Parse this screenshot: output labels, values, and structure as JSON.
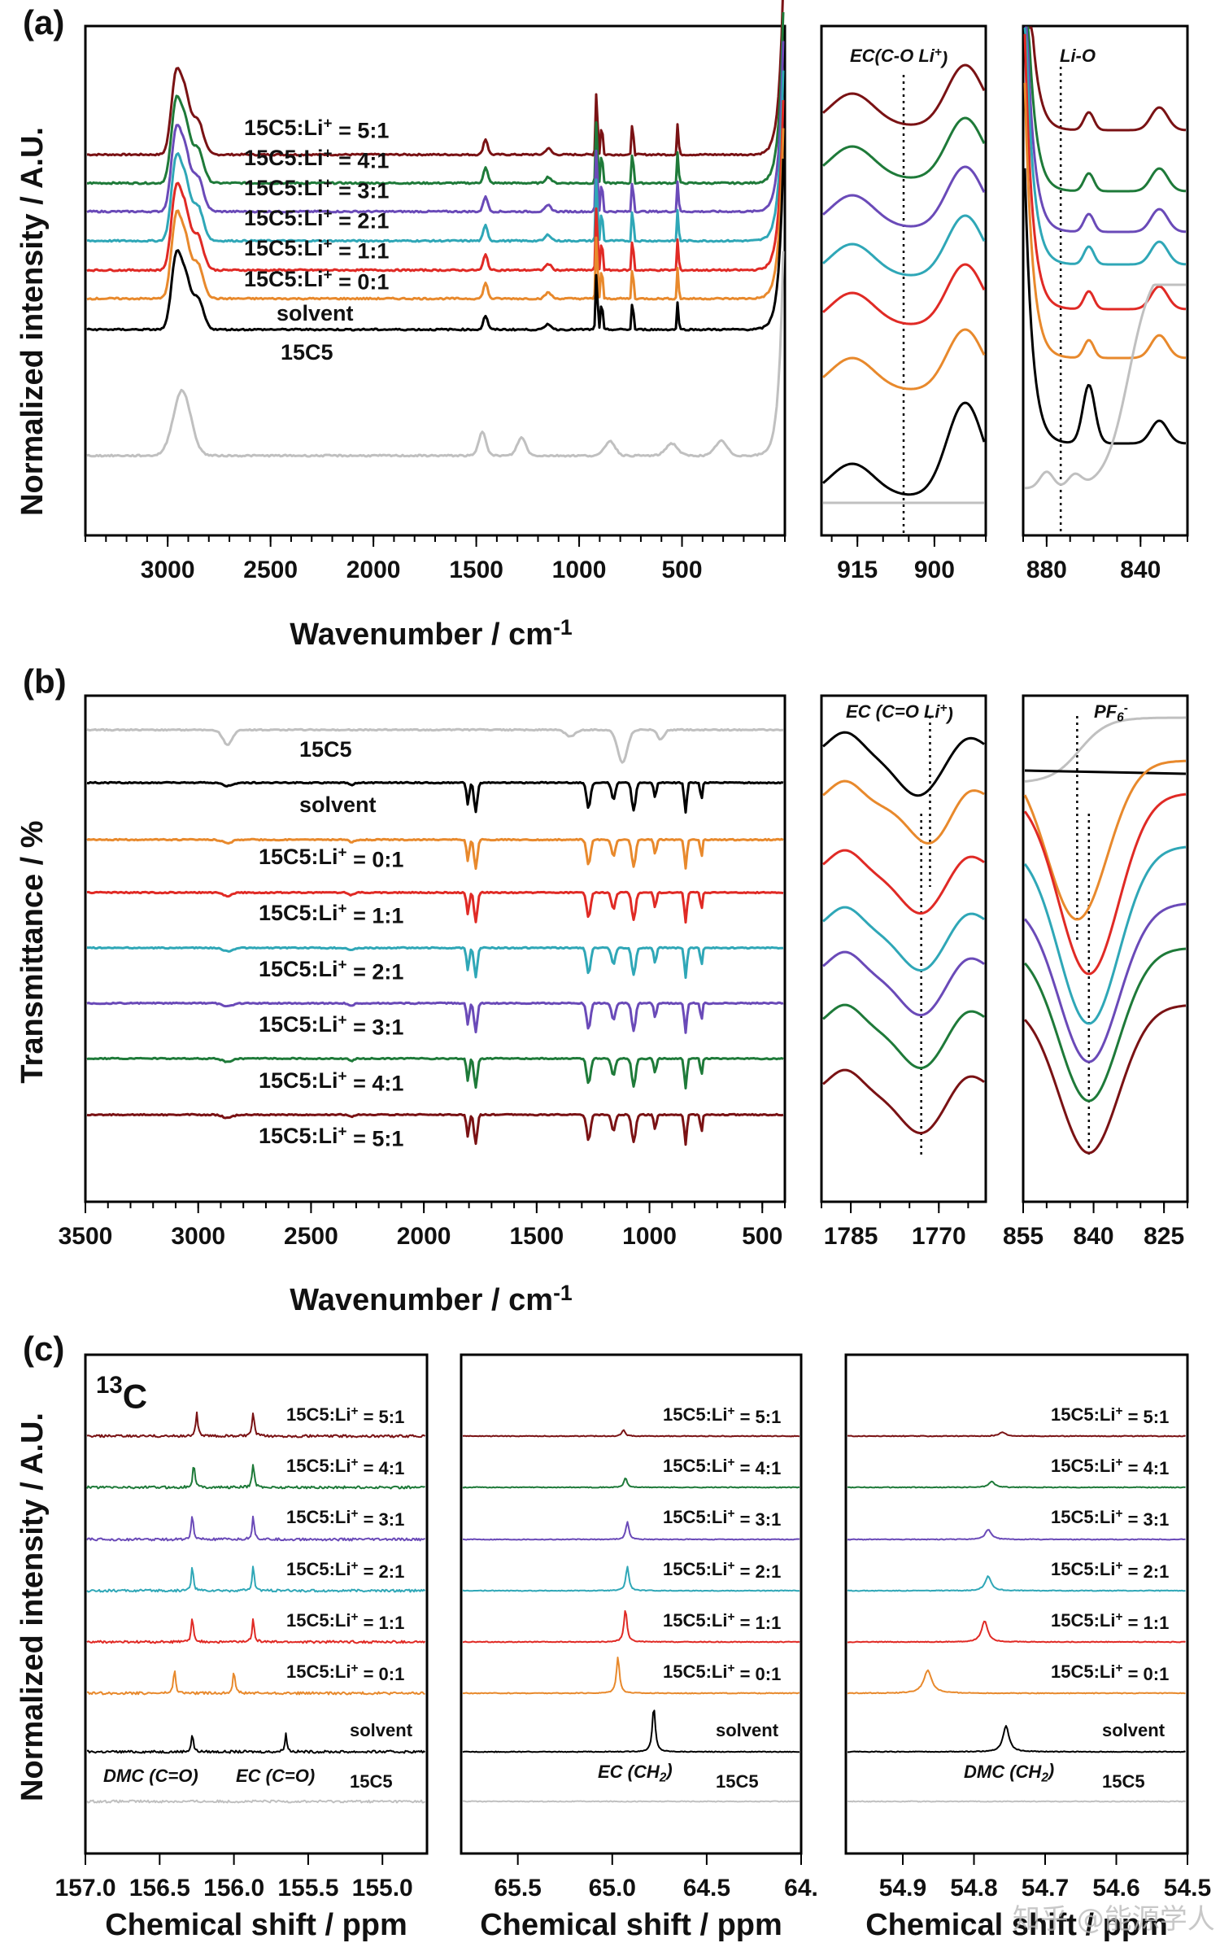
{
  "colors": {
    "15C5": "#c0c0c0",
    "solvent": "#000000",
    "0:1": "#e8892c",
    "1:1": "#e02a25",
    "2:1": "#2fa7b7",
    "3:1": "#6a4ab8",
    "4:1": "#1e7a39",
    "5:1": "#7a1214"
  },
  "watermark": "知乎 @能源学人",
  "chart_data": [
    {
      "panel": "(a)",
      "type": "line",
      "technique": "Raman",
      "ylabel": "Normalized intensity / A.U.",
      "xlabel": "Wavenumber / cm",
      "xlabel_sup": "-1",
      "subplots": [
        {
          "name": "full",
          "xlim": [
            3400,
            0
          ],
          "xticks": [
            3000,
            2500,
            2000,
            1500,
            1000,
            500
          ],
          "peaks": [
            {
              "x": 2960,
              "h": 1.0,
              "w": 25
            },
            {
              "x": 2915,
              "h": 0.7,
              "w": 25
            },
            {
              "x": 2855,
              "h": 0.45,
              "w": 30
            },
            {
              "x": 1455,
              "h": 0.2,
              "w": 15
            },
            {
              "x": 1150,
              "h": 0.08,
              "w": 20
            },
            {
              "x": 915,
              "h": 0.9,
              "w": 6
            },
            {
              "x": 890,
              "h": 0.45,
              "w": 6
            },
            {
              "x": 740,
              "h": 0.55,
              "w": 5
            },
            {
              "x": 520,
              "h": 0.45,
              "w": 5
            }
          ],
          "series": [
            {
              "name": "15C5",
              "key": "15C5"
            },
            {
              "name": "solvent",
              "key": "solvent"
            },
            {
              "name": "15C5:Li+ = 0:1",
              "key": "0:1"
            },
            {
              "name": "15C5:Li+ = 1:1",
              "key": "1:1"
            },
            {
              "name": "15C5:Li+ = 2:1",
              "key": "2:1"
            },
            {
              "name": "15C5:Li+ = 3:1",
              "key": "3:1"
            },
            {
              "name": "15C5:Li+ = 4:1",
              "key": "4:1"
            },
            {
              "name": "15C5:Li+ = 5:1",
              "key": "5:1"
            }
          ],
          "labels": {
            "15C5": "15C5",
            "solvent": "solvent",
            "0:1": "15C5:Li",
            "1:1": "15C5:Li",
            "2:1": "15C5:Li",
            "3:1": "15C5:Li",
            "4:1": "15C5:Li",
            "5:1": "15C5:Li",
            "sup": "+",
            "ratios": {
              "0:1": " = 0:1",
              "1:1": " = 1:1",
              "2:1": " = 2:1",
              "3:1": " = 3:1",
              "4:1": " = 4:1",
              "5:1": " = 5:1"
            }
          }
        },
        {
          "name": "EC zoom",
          "xlim": [
            922,
            890
          ],
          "xticks": [
            915,
            900
          ],
          "annotation": "EC(C-O Li",
          "annotation_sup": "+",
          "annotation_end": ")",
          "dotted_x": 906
        },
        {
          "name": "Li-O zoom",
          "xlim": [
            890,
            820
          ],
          "xticks": [
            880,
            840
          ],
          "annotation": "Li-O",
          "dotted_x": 874
        }
      ]
    },
    {
      "panel": "(b)",
      "type": "line",
      "technique": "FTIR",
      "ylabel": "Transmittance / %",
      "xlabel": "Wavenumber / cm",
      "xlabel_sup": "-1",
      "subplots": [
        {
          "name": "full",
          "xlim": [
            3500,
            400
          ],
          "xticks": [
            3500,
            3000,
            2500,
            2000,
            1500,
            1000,
            500
          ],
          "dips": [
            {
              "x": 1805,
              "d": 0.6,
              "w": 8
            },
            {
              "x": 1770,
              "d": 0.8,
              "w": 10
            },
            {
              "x": 1270,
              "d": 0.7,
              "w": 12
            },
            {
              "x": 1160,
              "d": 0.45,
              "w": 12
            },
            {
              "x": 1070,
              "d": 0.75,
              "w": 12
            },
            {
              "x": 975,
              "d": 0.4,
              "w": 8
            },
            {
              "x": 840,
              "d": 0.8,
              "w": 8
            },
            {
              "x": 770,
              "d": 0.5,
              "w": 6
            }
          ],
          "order_top_to_bottom": [
            "15C5",
            "solvent",
            "0:1",
            "1:1",
            "2:1",
            "3:1",
            "4:1",
            "5:1"
          ],
          "labels": [
            "15C5",
            "solvent",
            "15C5:Li",
            "15C5:Li",
            "15C5:Li",
            "15C5:Li",
            "15C5:Li",
            "15C5:Li"
          ],
          "ratios": [
            "",
            "",
            " = 0:1",
            " = 1:1",
            " = 2:1",
            " = 3:1",
            " = 4:1",
            " = 5:1"
          ]
        },
        {
          "name": "EC zoom",
          "xlim": [
            1790,
            1762
          ],
          "xticks": [
            1785,
            1770
          ],
          "annotation": "EC (C=O Li",
          "annotation_sup": "+",
          "annotation_end": ")",
          "dotted_x": [
            1773,
            1771.5
          ]
        },
        {
          "name": "PF6 zoom",
          "xlim": [
            855,
            820
          ],
          "xticks": [
            855,
            840,
            825
          ],
          "annotation": "PF",
          "annotation_sub": "6",
          "annotation_sup": "-",
          "dotted_x": [
            843.5,
            841
          ]
        }
      ]
    },
    {
      "panel": "(c)",
      "type": "line",
      "technique": "13C NMR",
      "nucleus_sup": "13",
      "nucleus": "C",
      "ylabel": "Normalized intensity / A.U.",
      "xlabel": "Chemical shift / ppm",
      "subplots": [
        {
          "name": "carbonyl",
          "xlim": [
            157.0,
            154.7
          ],
          "xticks": [
            "157.0",
            "156.5",
            "156.0",
            "155.5",
            "155.0"
          ],
          "xtick_values": [
            157.0,
            156.5,
            156.0,
            155.5,
            155.0
          ],
          "annotations": [
            "DMC (C=O)",
            "EC (C=O)"
          ],
          "peaks": {
            "solvent": [
              156.28,
              155.65
            ],
            "0:1": [
              156.4,
              156.0
            ],
            "1:1": [
              156.28,
              155.87
            ],
            "2:1": [
              156.28,
              155.87
            ],
            "3:1": [
              156.28,
              155.87
            ],
            "4:1": [
              156.27,
              155.87
            ],
            "5:1": [
              156.25,
              155.87
            ]
          }
        },
        {
          "name": "EC CH2",
          "xlim": [
            65.8,
            64.0
          ],
          "xticks": [
            "65.5",
            "65.0",
            "64.5",
            "64."
          ],
          "xtick_values": [
            65.5,
            65.0,
            64.5,
            64.0
          ],
          "annotation": "EC (CH",
          "annotation_sub": "2",
          "annotation_end": ")",
          "peaks": {
            "solvent": [
              64.78
            ],
            "0:1": [
              64.97
            ],
            "1:1": [
              64.93
            ],
            "2:1": [
              64.92
            ],
            "3:1": [
              64.92
            ],
            "4:1": [
              64.93
            ],
            "5:1": [
              64.94
            ]
          }
        },
        {
          "name": "DMC CH2",
          "xlim": [
            54.98,
            54.5
          ],
          "xticks": [
            "54.9",
            "54.8",
            "54.7",
            "54.6",
            "54.5"
          ],
          "xtick_values": [
            54.9,
            54.8,
            54.7,
            54.6,
            54.5
          ],
          "annotation": "DMC (CH",
          "annotation_sub": "2",
          "annotation_end": ")",
          "peaks": {
            "solvent": [
              54.755
            ],
            "0:1": [
              54.865
            ],
            "1:1": [
              54.785
            ],
            "2:1": [
              54.78
            ],
            "3:1": [
              54.78
            ],
            "4:1": [
              54.775
            ],
            "5:1": [
              54.76
            ]
          }
        }
      ],
      "series_labels": [
        {
          "key": "5:1",
          "text": "15C5:Li",
          "ratio": " = 5:1"
        },
        {
          "key": "4:1",
          "text": "15C5:Li",
          "ratio": " = 4:1"
        },
        {
          "key": "3:1",
          "text": "15C5:Li",
          "ratio": " = 3:1"
        },
        {
          "key": "2:1",
          "text": "15C5:Li",
          "ratio": " = 2:1"
        },
        {
          "key": "1:1",
          "text": "15C5:Li",
          "ratio": " = 1:1"
        },
        {
          "key": "0:1",
          "text": "15C5:Li",
          "ratio": " = 0:1"
        },
        {
          "key": "solvent",
          "text": "solvent",
          "ratio": ""
        },
        {
          "key": "15C5",
          "text": "15C5",
          "ratio": ""
        }
      ]
    }
  ]
}
